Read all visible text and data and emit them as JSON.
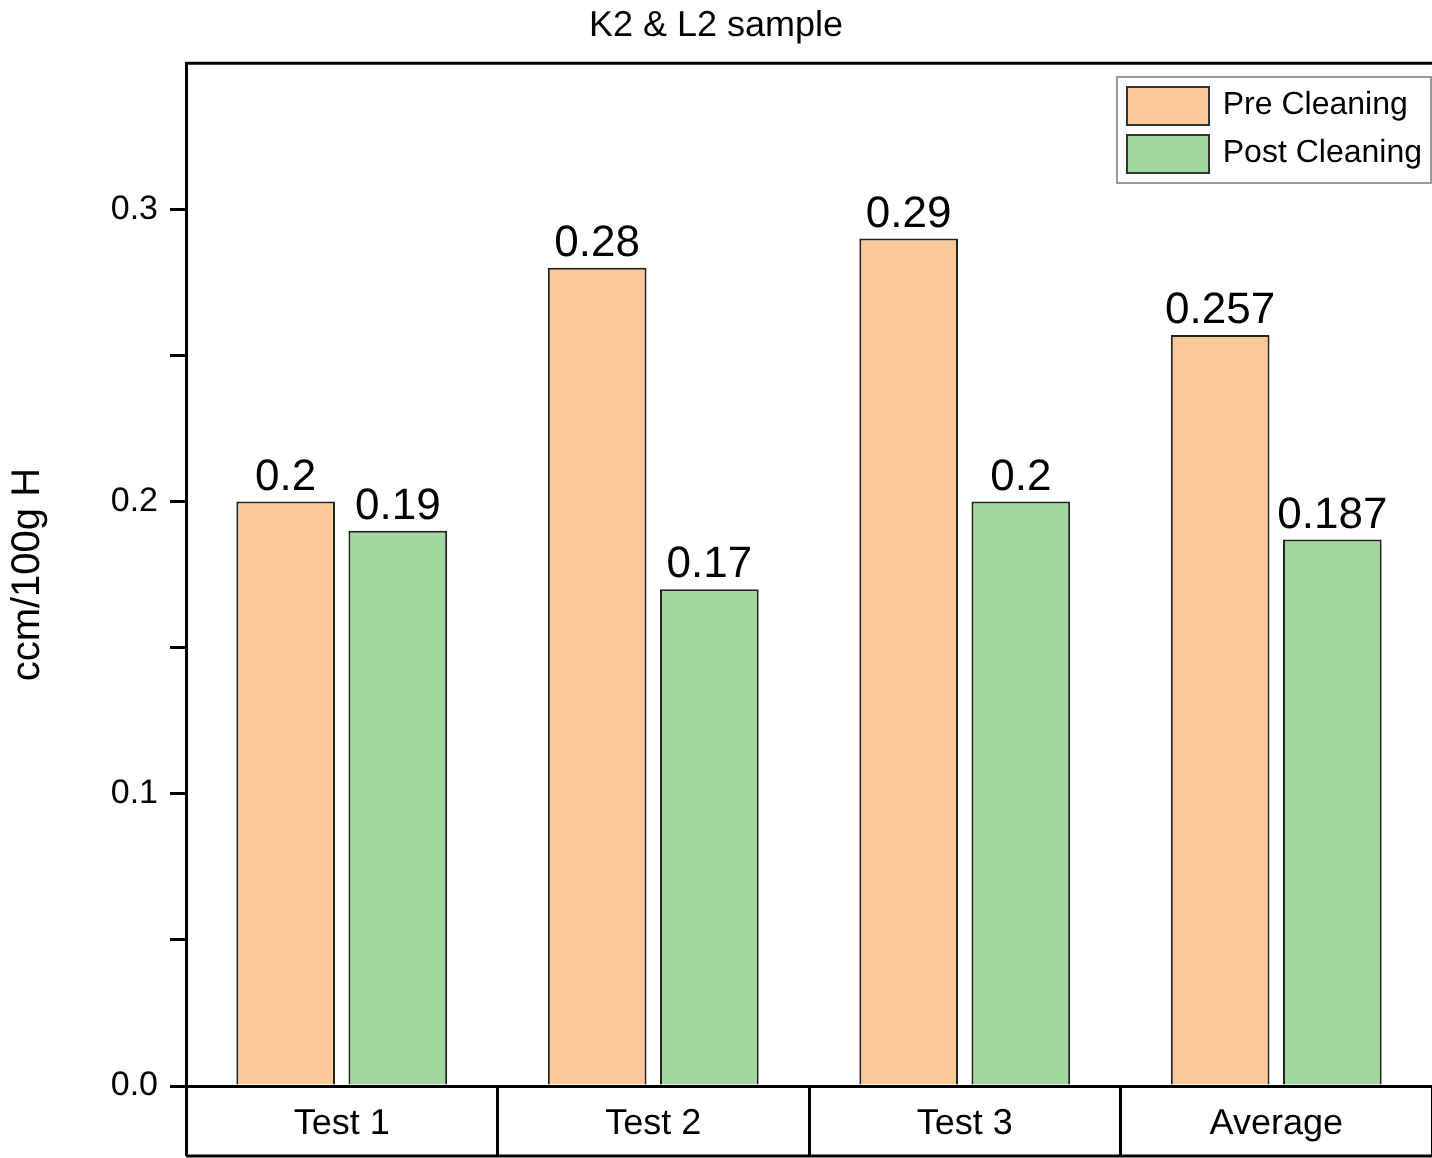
{
  "chart_data": {
    "type": "bar",
    "title": "K2 & L2 sample",
    "ylabel": "ccm/100g H",
    "categories": [
      "Test 1",
      "Test 2",
      "Test 3",
      "Average"
    ],
    "series": [
      {
        "name": "Pre Cleaning",
        "color": "#fbc898",
        "values": [
          0.2,
          0.28,
          0.29,
          0.257
        ]
      },
      {
        "name": "Post Cleaning",
        "color": "#a0d89e",
        "values": [
          0.19,
          0.17,
          0.2,
          0.187
        ]
      }
    ],
    "ylim": [
      0,
      0.35
    ],
    "yticks": [
      {
        "value": 0,
        "label": "0.0"
      },
      {
        "value": 0.05,
        "label": null
      },
      0.1,
      {
        "value": 0.15,
        "label": null
      },
      0.2,
      {
        "value": 0.25,
        "label": null
      },
      0.3
    ],
    "data_labels": true,
    "grid": false,
    "legend": "top right"
  }
}
